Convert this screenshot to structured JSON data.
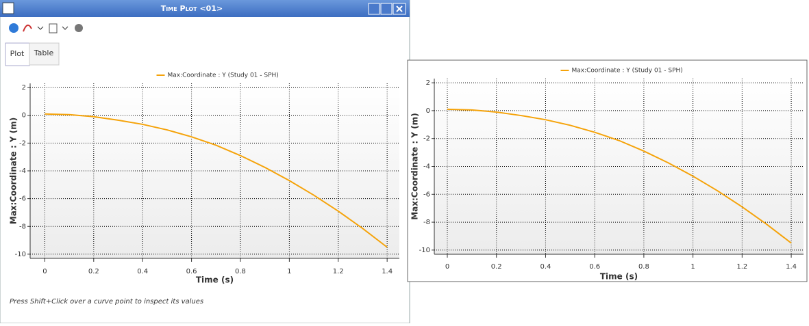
{
  "window": {
    "title": "Time Plot <01>",
    "tabs": [
      "Plot",
      "Table"
    ],
    "status": "Press Shift+Click over a curve point to inspect its values"
  },
  "chart_data": [
    {
      "type": "line",
      "x_label": "Time (s)",
      "y_label": "Max:Coordinate : Y (m)",
      "x": [
        0,
        0.1,
        0.2,
        0.3,
        0.4,
        0.5,
        0.6,
        0.7,
        0.8,
        0.9,
        1.0,
        1.1,
        1.2,
        1.3,
        1.4
      ],
      "series": [
        {
          "name": "Max:Coordinate : Y (Study 01 - SPH)",
          "color": "#f5a30a",
          "values": [
            0.1,
            0.05,
            -0.1,
            -0.35,
            -0.65,
            -1.05,
            -1.55,
            -2.15,
            -2.9,
            -3.75,
            -4.7,
            -5.75,
            -6.9,
            -8.15,
            -9.5
          ]
        }
      ],
      "xlim": [
        -0.06,
        1.45
      ],
      "ylim": [
        -10.3,
        2.3
      ],
      "xticks": [
        0,
        0.2,
        0.4,
        0.6,
        0.8,
        1,
        1.2,
        1.4
      ],
      "yticks": [
        -10,
        -8,
        -6,
        -4,
        -2,
        0,
        2
      ],
      "grid": true
    },
    {
      "type": "line",
      "x_label": "Time (s)",
      "y_label": "Max:Coordinate : Y (m)",
      "x": [
        0,
        0.1,
        0.2,
        0.3,
        0.4,
        0.5,
        0.6,
        0.7,
        0.8,
        0.9,
        1.0,
        1.1,
        1.2,
        1.3,
        1.4
      ],
      "series": [
        {
          "name": "Max:Coordinate : Y (Study 01 - SPH)",
          "color": "#f5a30a",
          "values": [
            0.1,
            0.05,
            -0.1,
            -0.35,
            -0.65,
            -1.05,
            -1.55,
            -2.15,
            -2.9,
            -3.75,
            -4.7,
            -5.75,
            -6.9,
            -8.15,
            -9.5
          ]
        }
      ],
      "xlim": [
        -0.053,
        1.45
      ],
      "ylim": [
        -10.3,
        2.3
      ],
      "xticks": [
        0,
        0.2,
        0.4,
        0.6,
        0.8,
        1,
        1.2,
        1.4
      ],
      "yticks": [
        -10,
        -8,
        -6,
        -4,
        -2,
        0,
        2
      ],
      "grid": true
    }
  ]
}
